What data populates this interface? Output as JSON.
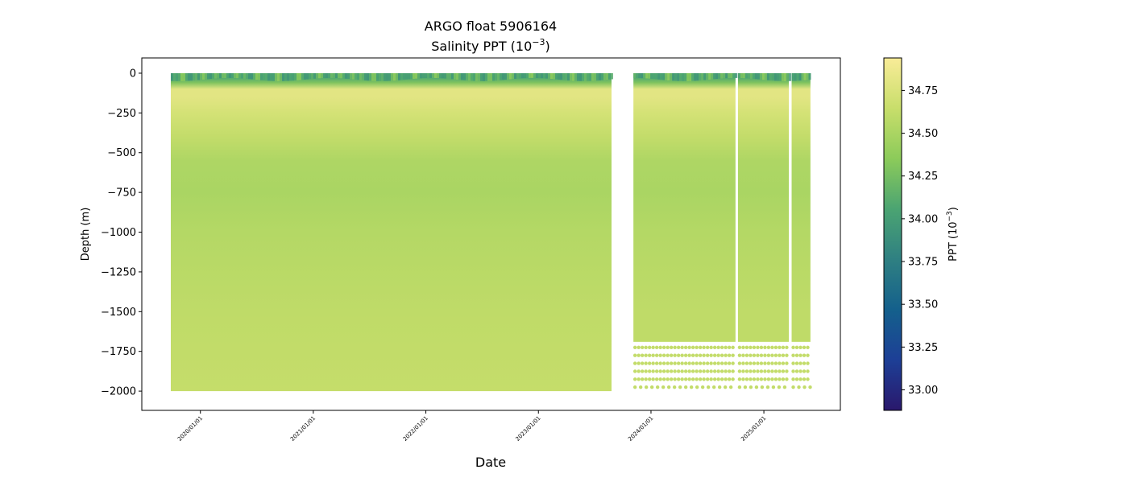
{
  "chart_data": {
    "type": "heatmap",
    "title": "ARGO float 5906164",
    "subtitle_prefix": "Salinity PPT (10",
    "subtitle_exp": "−3",
    "subtitle_suffix": ")",
    "xlabel": "Date",
    "ylabel": "Depth (m)",
    "colorbar_label_prefix": "PPT (10",
    "colorbar_label_exp": "−3",
    "colorbar_label_suffix": ")",
    "xlim": [
      "2019-06-25",
      "2025-09-06"
    ],
    "ylim": [
      -2121,
      96
    ],
    "clim": [
      32.88,
      34.94
    ],
    "colormap": [
      "#2a186c",
      "#1d3f96",
      "#14608c",
      "#2f8082",
      "#4ba472",
      "#8ccb5a",
      "#c8de6b",
      "#f9ec98"
    ],
    "x_ticks": [
      "2020/01/01",
      "2021/01/01",
      "2022/01/01",
      "2023/01/01",
      "2024/01/01",
      "2025/01/01"
    ],
    "y_ticks": [
      0,
      -250,
      -500,
      -750,
      -1000,
      -1250,
      -1500,
      -1750,
      -2000
    ],
    "y_tick_labels": [
      "0",
      "−250",
      "−500",
      "−750",
      "−1000",
      "−1250",
      "−1500",
      "−1750",
      "−2000"
    ],
    "colorbar_ticks": [
      33.0,
      33.25,
      33.5,
      33.75,
      34.0,
      34.25,
      34.5,
      34.75
    ],
    "colorbar_tick_labels": [
      "33.00",
      "33.25",
      "33.50",
      "33.75",
      "34.00",
      "34.25",
      "34.50",
      "34.75"
    ],
    "typical_profile": {
      "depth": [
        0,
        -30,
        -60,
        -100,
        -150,
        -250,
        -400,
        -550,
        -750,
        -1000,
        -1500,
        -2000
      ],
      "salinity": [
        34.2,
        34.1,
        34.3,
        34.8,
        34.8,
        34.72,
        34.62,
        34.52,
        34.5,
        34.55,
        34.6,
        34.63
      ]
    },
    "segments": [
      {
        "start": "2019-09-27",
        "end": "2023-08-26",
        "max_depth": -2000
      },
      {
        "start": "2023-11-05",
        "end": "2024-10-01",
        "max_depth": -1690
      },
      {
        "start": "2024-10-09",
        "end": "2025-03-23",
        "max_depth": -1690
      },
      {
        "start": "2025-04-01",
        "end": "2025-06-01",
        "max_depth": -1690
      }
    ],
    "sparse_deep_levels": [
      -1725,
      -1775,
      -1825,
      -1875,
      -1925,
      -1975
    ],
    "sparse_deep_salinity": 34.62
  }
}
